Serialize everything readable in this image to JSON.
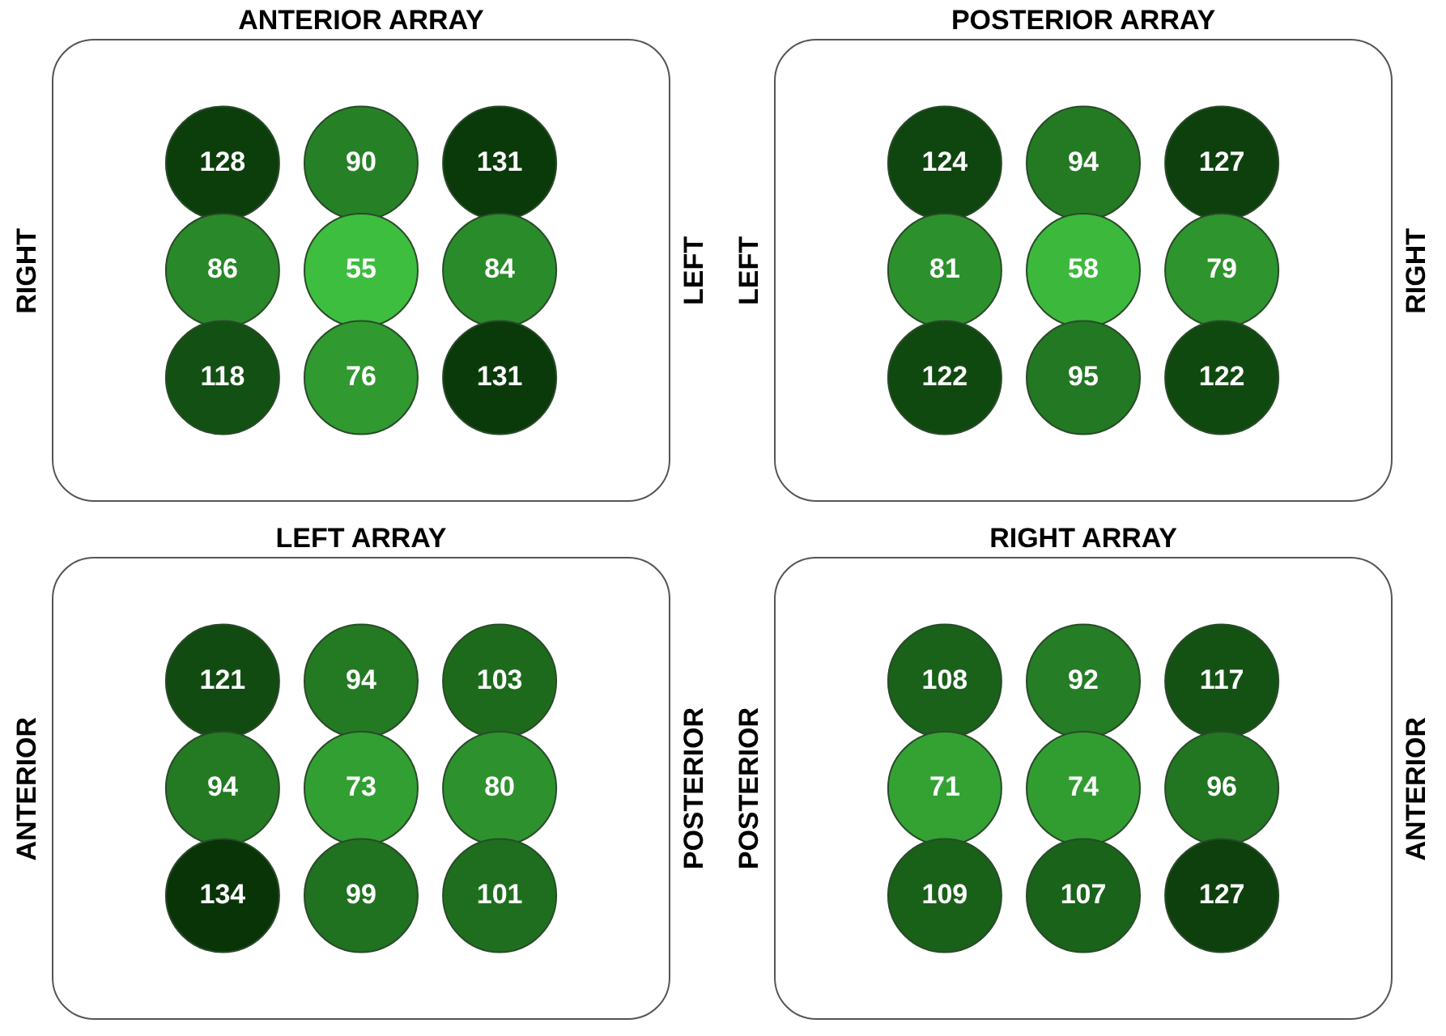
{
  "chart_data": [
    {
      "type": "other",
      "title": "ANTERIOR ARRAY",
      "ylabel": "RIGHT",
      "y2label": "LEFT",
      "values": [
        128,
        90,
        131,
        86,
        55,
        84,
        118,
        76,
        131
      ],
      "data_labels": true
    },
    {
      "type": "other",
      "title": "POSTERIOR ARRAY",
      "ylabel": "LEFT",
      "y2label": "RIGHT",
      "values": [
        124,
        94,
        127,
        81,
        58,
        79,
        122,
        95,
        122
      ],
      "data_labels": true
    },
    {
      "type": "other",
      "title": "LEFT ARRAY",
      "ylabel": "ANTERIOR",
      "y2label": "POSTERIOR",
      "values": [
        121,
        94,
        103,
        94,
        73,
        80,
        134,
        99,
        101
      ],
      "data_labels": true
    },
    {
      "type": "other",
      "title": "RIGHT ARRAY",
      "ylabel": "POSTERIOR",
      "y2label": "ANTERIOR",
      "values": [
        108,
        92,
        117,
        71,
        74,
        96,
        109,
        107,
        127
      ],
      "data_labels": true
    }
  ]
}
